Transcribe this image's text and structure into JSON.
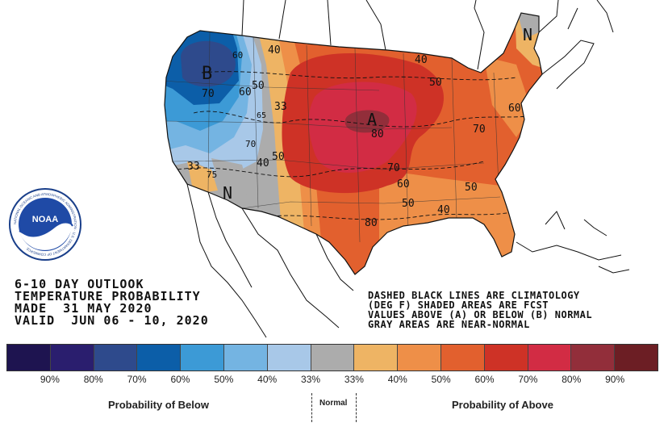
{
  "header": {
    "line1": "6-10 DAY OUTLOOK",
    "line2": "TEMPERATURE PROBABILITY",
    "line3": "MADE  31 MAY 2020",
    "line4": "VALID  JUN 06 - 10, 2020"
  },
  "note": {
    "line1": "DASHED BLACK LINES ARE CLIMATOLOGY",
    "line2": "(DEG F) SHADED AREAS ARE FCST",
    "line3": "VALUES ABOVE (A) OR BELOW (B) NORMAL",
    "line4": "GRAY AREAS ARE NEAR-NORMAL"
  },
  "logo": {
    "text": "NOAA",
    "ring_text": "NATIONAL OCEANIC AND ATMOSPHERIC ADMINISTRATION · U.S. DEPARTMENT OF COMMERCE"
  },
  "map_labels": {
    "B": "B",
    "A": "A",
    "N_west": "N",
    "N_east": "N",
    "c40a": "40",
    "c60a": "60",
    "c70a": "70",
    "c60b": "60",
    "c50a": "50",
    "c33a": "33",
    "c65": "65",
    "c70b": "70",
    "c50b": "50",
    "c40b": "40",
    "c33b": "33",
    "c75": "75",
    "c40c": "40",
    "c50c": "50",
    "c80a": "80",
    "c70c": "70",
    "c70d": "70",
    "c60c": "60",
    "c50d": "50",
    "c50e": "50",
    "c40d": "40",
    "c80b": "80",
    "c60d": "60"
  },
  "legend": {
    "colors": [
      "#1e1450",
      "#2a1e6e",
      "#2e4a8c",
      "#0c5ea8",
      "#3c9ad6",
      "#74b4e2",
      "#a8c8e8",
      "#acacac",
      "#eeb464",
      "#ee8f48",
      "#e2602e",
      "#ce3226",
      "#d22c44",
      "#922e3a",
      "#6c1e24"
    ],
    "ticks": [
      "90%",
      "80%",
      "70%",
      "60%",
      "50%",
      "40%",
      "33%",
      "33%",
      "40%",
      "50%",
      "60%",
      "70%",
      "80%",
      "90%"
    ],
    "below_label": "Probability of Below",
    "normal_label": "Normal",
    "above_label": "Probability of Above"
  }
}
